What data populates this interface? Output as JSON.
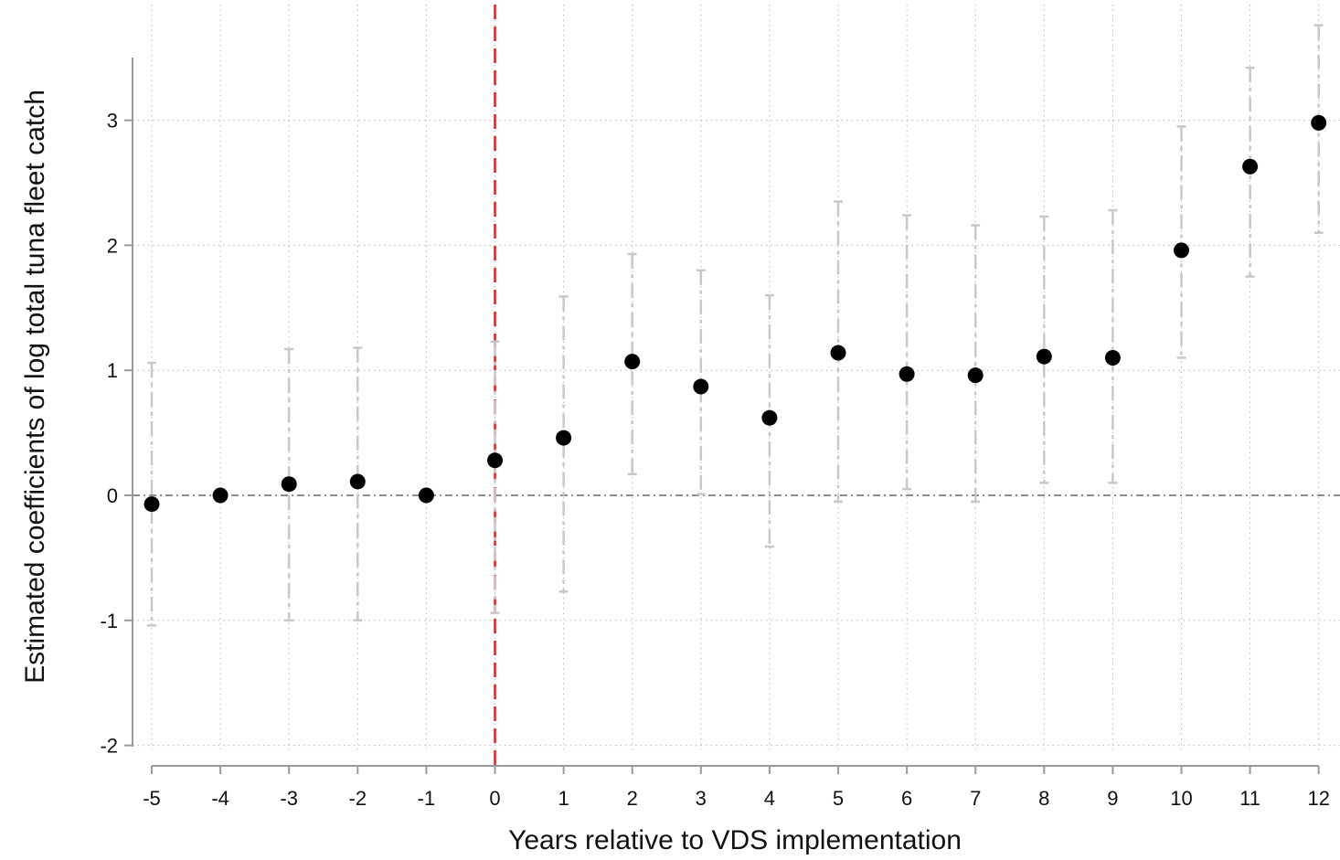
{
  "chart_data": {
    "type": "scatter",
    "title": "",
    "xlabel": "Years relative to VDS implementation",
    "ylabel": "Estimated coefficients of log total tuna fleet catch",
    "x": [
      -5,
      -4,
      -3,
      -2,
      -1,
      0,
      1,
      2,
      3,
      4,
      5,
      6,
      7,
      8,
      9,
      10,
      11,
      12
    ],
    "xticks": [
      "-5",
      "-4",
      "-3",
      "-2",
      "-1",
      "0",
      "1",
      "2",
      "3",
      "4",
      "5",
      "6",
      "7",
      "8",
      "9",
      "10",
      "11",
      "12"
    ],
    "xlim": [
      -5.2,
      12.3
    ],
    "ylim": [
      -2.15,
      3.95
    ],
    "yticks": [
      "-2",
      "-1",
      "0",
      "1",
      "2",
      "3"
    ],
    "grid": true,
    "series": [
      {
        "values": [
          -0.07,
          0.0,
          0.09,
          0.11,
          0.0,
          0.28,
          0.46,
          1.07,
          0.87,
          0.62,
          1.14,
          0.97,
          0.96,
          1.11,
          1.1,
          1.96,
          2.63,
          2.98
        ],
        "ci_lower": [
          -1.04,
          null,
          -1.0,
          -1.0,
          null,
          -0.94,
          -0.77,
          0.17,
          0.01,
          -0.41,
          -0.05,
          0.05,
          -0.05,
          0.1,
          0.1,
          1.1,
          1.75,
          2.1
        ],
        "ci_upper": [
          1.06,
          null,
          1.17,
          1.18,
          null,
          1.23,
          1.59,
          1.93,
          1.8,
          1.6,
          2.35,
          2.24,
          2.16,
          2.23,
          2.28,
          2.95,
          3.42,
          3.76
        ]
      }
    ],
    "reference_lines": [
      {
        "axis": "x",
        "value": 0,
        "style": "dashed",
        "color": "#e02020"
      },
      {
        "axis": "y",
        "value": 0,
        "style": "dash-dot",
        "color": "#8c8c8c"
      }
    ],
    "colors": {
      "point": "#000000",
      "error_bar": "#c8c8c8",
      "grid": "#b8b8b8",
      "axis": "#9a9a9a"
    }
  }
}
